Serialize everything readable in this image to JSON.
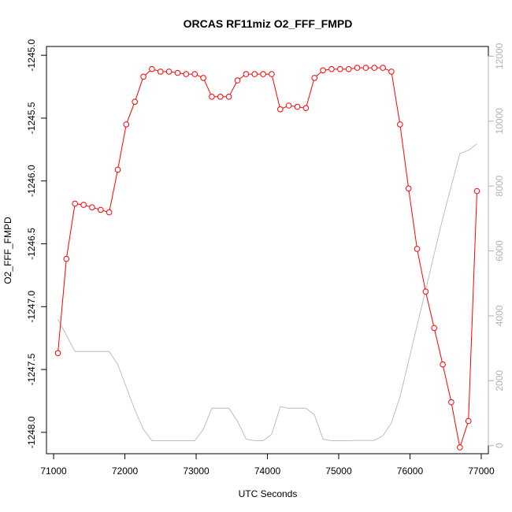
{
  "chart_data": {
    "type": "line",
    "title": "ORCAS RF11miz O2_FFF_FMPD",
    "xlabel": "UTC Seconds",
    "ylabel": "O2_FFF_FMPD",
    "xlim": [
      70900,
      77100
    ],
    "ylim": [
      -1248.17,
      -1244.93
    ],
    "y2lim": [
      -250,
      12300
    ],
    "x_ticks": [
      {
        "value": 71000,
        "label": "71000"
      },
      {
        "value": 72000,
        "label": "72000"
      },
      {
        "value": 73000,
        "label": "73000"
      },
      {
        "value": 74000,
        "label": "74000"
      },
      {
        "value": 75000,
        "label": "75000"
      },
      {
        "value": 76000,
        "label": "76000"
      },
      {
        "value": 77000,
        "label": "77000"
      }
    ],
    "y_ticks": [
      {
        "value": -1245.0,
        "label": "-1245.0"
      },
      {
        "value": -1245.5,
        "label": "-1245.5"
      },
      {
        "value": -1246.0,
        "label": "-1246.0"
      },
      {
        "value": -1246.5,
        "label": "-1246.5"
      },
      {
        "value": -1247.0,
        "label": "-1247.0"
      },
      {
        "value": -1247.5,
        "label": "-1247.5"
      },
      {
        "value": -1248.0,
        "label": "-1248.0"
      }
    ],
    "y2_ticks": [
      {
        "value": 0,
        "label": "0"
      },
      {
        "value": 2000,
        "label": "2000"
      },
      {
        "value": 4000,
        "label": "4000"
      },
      {
        "value": 6000,
        "label": "6000"
      },
      {
        "value": 8000,
        "label": "8000"
      },
      {
        "value": 10000,
        "label": "10000"
      },
      {
        "value": 12000,
        "label": "12000"
      }
    ],
    "colors": {
      "primary": "#ff0000",
      "secondary": "#bebebe"
    },
    "series": [
      {
        "axis": "left",
        "style": "line+points",
        "x": [
          71060,
          71180,
          71300,
          71420,
          71540,
          71660,
          71780,
          71900,
          72020,
          72140,
          72260,
          72380,
          72500,
          72620,
          72740,
          72860,
          72980,
          73100,
          73220,
          73340,
          73460,
          73580,
          73700,
          73820,
          73940,
          74060,
          74180,
          74300,
          74420,
          74540,
          74660,
          74780,
          74900,
          75020,
          75140,
          75260,
          75380,
          75500,
          75620,
          75740,
          75860,
          75980,
          76100,
          76220,
          76340,
          76460,
          76580,
          76700,
          76820,
          76940
        ],
        "y": [
          -1247.37,
          -1246.62,
          -1246.18,
          -1246.19,
          -1246.21,
          -1246.23,
          -1246.25,
          -1245.91,
          -1245.55,
          -1245.37,
          -1245.17,
          -1245.11,
          -1245.13,
          -1245.13,
          -1245.14,
          -1245.15,
          -1245.15,
          -1245.18,
          -1245.33,
          -1245.33,
          -1245.33,
          -1245.2,
          -1245.15,
          -1245.15,
          -1245.15,
          -1245.15,
          -1245.43,
          -1245.4,
          -1245.41,
          -1245.42,
          -1245.18,
          -1245.12,
          -1245.11,
          -1245.11,
          -1245.11,
          -1245.1,
          -1245.1,
          -1245.1,
          -1245.1,
          -1245.13,
          -1245.55,
          -1246.06,
          -1246.54,
          -1246.88,
          -1247.17,
          -1247.46,
          -1247.76,
          -1248.12,
          -1247.91,
          -1246.08
        ]
      },
      {
        "axis": "right",
        "style": "line",
        "x": [
          71060,
          71300,
          71540,
          71780,
          71900,
          72020,
          72140,
          72260,
          72380,
          72500,
          72620,
          72740,
          72860,
          72980,
          73100,
          73220,
          73340,
          73460,
          73580,
          73700,
          73820,
          73940,
          74060,
          74180,
          74300,
          74420,
          74540,
          74660,
          74780,
          74900,
          75020,
          75140,
          75260,
          75380,
          75500,
          75620,
          75740,
          75860,
          75980,
          76100,
          76220,
          76340,
          76460,
          76580,
          76700,
          76820,
          76940
        ],
        "y": [
          3900,
          2900,
          2900,
          2900,
          2500,
          1800,
          1100,
          500,
          150,
          150,
          150,
          150,
          150,
          150,
          500,
          1150,
          1150,
          1150,
          750,
          200,
          150,
          150,
          350,
          1200,
          1150,
          1150,
          1150,
          950,
          200,
          150,
          150,
          150,
          160,
          160,
          160,
          300,
          700,
          1500,
          2600,
          3700,
          4800,
          5900,
          7000,
          8000,
          9000,
          9100,
          9300
        ]
      }
    ]
  }
}
